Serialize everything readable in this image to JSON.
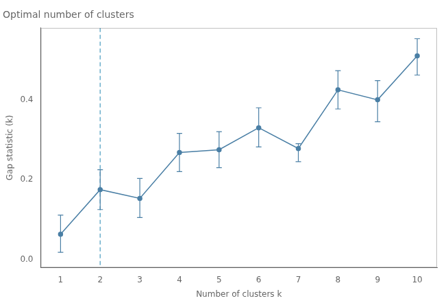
{
  "chart_data": {
    "type": "line",
    "title": "Optimal number of clusters",
    "xlabel": "Number of clusters k",
    "ylabel": "Gap statistic (k)",
    "x": [
      1,
      2,
      3,
      4,
      5,
      6,
      7,
      8,
      9,
      10
    ],
    "values": [
      0.063,
      0.175,
      0.153,
      0.268,
      0.275,
      0.33,
      0.278,
      0.425,
      0.4,
      0.51
    ],
    "yerr_lower": [
      0.045,
      0.05,
      0.048,
      0.048,
      0.045,
      0.048,
      0.033,
      0.048,
      0.055,
      0.048
    ],
    "yerr_upper": [
      0.048,
      0.05,
      0.05,
      0.048,
      0.045,
      0.05,
      0.012,
      0.048,
      0.048,
      0.043
    ],
    "color": "#4a7fa5",
    "marker": "circle",
    "line_style": "solid",
    "vline": {
      "x": 2,
      "color": "#6baecb",
      "line_style": "dashed"
    },
    "xlim": [
      0.5,
      10.5
    ],
    "ylim": [
      -0.02,
      0.58
    ],
    "xticks": [
      1,
      2,
      3,
      4,
      5,
      6,
      7,
      8,
      9,
      10
    ],
    "yticks": [
      {
        "value": 0.0,
        "label": "0.0"
      },
      0.2,
      0.4
    ],
    "grid": false
  }
}
